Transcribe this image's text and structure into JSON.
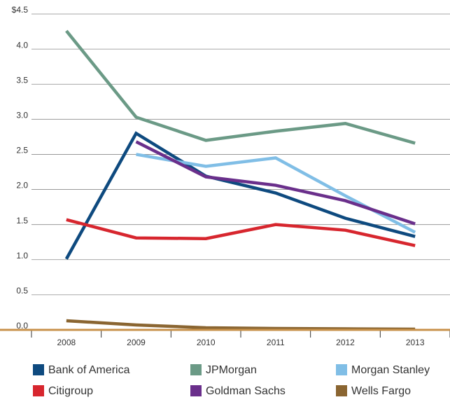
{
  "chart_data": {
    "type": "line",
    "categories": [
      "2008",
      "2009",
      "2010",
      "2011",
      "2012",
      "2013"
    ],
    "series": [
      {
        "name": "Bank of America",
        "color": "#0e4a7f",
        "values": [
          1.01,
          2.8,
          2.19,
          1.95,
          1.59,
          1.33
        ]
      },
      {
        "name": "JPMorgan",
        "color": "#6b9a86",
        "values": [
          4.26,
          3.03,
          2.7,
          2.83,
          2.94,
          2.66
        ]
      },
      {
        "name": "Morgan Stanley",
        "color": "#80bee6",
        "values": [
          null,
          2.5,
          2.33,
          2.45,
          1.91,
          1.39
        ]
      },
      {
        "name": "Citigroup",
        "color": "#d7262e",
        "values": [
          1.57,
          1.31,
          1.3,
          1.5,
          1.42,
          1.2
        ]
      },
      {
        "name": "Goldman Sachs",
        "color": "#6a2f8b",
        "values": [
          null,
          2.68,
          2.18,
          2.06,
          1.84,
          1.51
        ]
      },
      {
        "name": "Wells Fargo",
        "color": "#8a6531",
        "values": [
          0.13,
          0.07,
          0.03,
          0.02,
          0.015,
          0.01
        ]
      }
    ],
    "ylim": [
      0,
      4.5
    ],
    "yticks": [
      {
        "value": 0,
        "label": "0.0"
      },
      0.5,
      {
        "value": 1,
        "label": "1.0"
      },
      1.5,
      {
        "value": 2,
        "label": "2.0"
      },
      2.5,
      {
        "value": 3,
        "label": "3.0"
      },
      3.5,
      {
        "value": 4,
        "label": "4.0"
      },
      {
        "value": 4.5,
        "label": "$4.5"
      }
    ],
    "grid": true
  }
}
